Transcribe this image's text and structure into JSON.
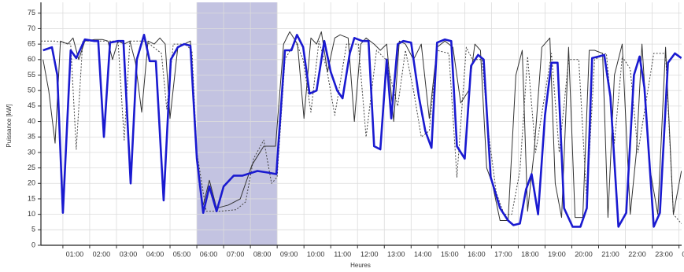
{
  "chart_data": {
    "type": "line",
    "xlabel": "Heures",
    "ylabel": "Puissance [kW]",
    "xlim": [
      0.18,
      24.1
    ],
    "ylim": [
      0,
      78.5
    ],
    "yticks": [
      0,
      5,
      10,
      15,
      20,
      25,
      30,
      35,
      40,
      45,
      50,
      55,
      60,
      65,
      70,
      75
    ],
    "xticks": [
      {
        "value": 1,
        "label": "01:00"
      },
      {
        "value": 2,
        "label": "02:00"
      },
      {
        "value": 3,
        "label": "03:00"
      },
      {
        "value": 4,
        "label": "04:00"
      },
      {
        "value": 5,
        "label": "05:00"
      },
      {
        "value": 6,
        "label": "06:00"
      },
      {
        "value": 7,
        "label": "07:00"
      },
      {
        "value": 8,
        "label": "08:00"
      },
      {
        "value": 9,
        "label": "09:00"
      },
      {
        "value": 10,
        "label": "10:00"
      },
      {
        "value": 11,
        "label": "11:00"
      },
      {
        "value": 12,
        "label": "12:00"
      },
      {
        "value": 13,
        "label": "13:00"
      },
      {
        "value": 14,
        "label": "14:00"
      },
      {
        "value": 15,
        "label": "15:00"
      },
      {
        "value": 16,
        "label": "16:00"
      },
      {
        "value": 17,
        "label": "17:00"
      },
      {
        "value": 18,
        "label": "18:00"
      },
      {
        "value": 19,
        "label": "19:00"
      },
      {
        "value": 20,
        "label": "20:00"
      },
      {
        "value": 21,
        "label": "21:00"
      },
      {
        "value": 22,
        "label": "22:00"
      },
      {
        "value": 23,
        "label": "23:00"
      },
      {
        "value": 24,
        "label": "00:00"
      }
    ],
    "grid": true,
    "highlight": {
      "range": [
        6,
        9
      ],
      "color": "#b8b8dc"
    },
    "series": [
      {
        "color": "#444444",
        "style": "dotted",
        "width": 1,
        "x": [
          0.18,
          0.71,
          1.29,
          1.5,
          1.74,
          2.18,
          3.06,
          3.29,
          3.5,
          4.09,
          4.68,
          4.88,
          5.12,
          5.56,
          5.82,
          6.0,
          6.35,
          6.88,
          7.47,
          7.82,
          8.12,
          8.5,
          8.79,
          9.0,
          9.29,
          9.68,
          9.97,
          10.26,
          10.56,
          10.85,
          11.15,
          11.59,
          12.03,
          12.32,
          12.71,
          13.06,
          13.5,
          13.79,
          14.09,
          14.38,
          14.68,
          14.97,
          15.41,
          15.71,
          16.06,
          16.29,
          16.65,
          16.88,
          17.18,
          17.47,
          17.76,
          18.06,
          18.35,
          18.65,
          19.24,
          19.53,
          19.88,
          20.26,
          20.56,
          20.85,
          21.29,
          21.59,
          21.88,
          22.18,
          22.47,
          23.06,
          23.5,
          23.79,
          24.09
        ],
        "values": [
          66,
          66,
          65,
          31,
          66,
          66,
          66,
          34,
          66,
          66,
          62,
          44,
          65,
          65,
          63,
          30,
          11,
          11,
          11.5,
          14,
          28,
          34,
          20,
          22,
          60,
          66,
          60,
          43,
          66,
          57,
          42,
          65,
          65,
          35,
          63,
          60,
          45,
          63,
          50,
          35,
          37,
          63,
          62,
          22,
          64,
          60,
          60,
          37,
          17,
          10,
          10,
          24,
          61,
          30,
          62,
          30,
          60,
          60,
          14,
          60,
          62,
          33,
          61,
          57,
          30,
          62,
          62,
          10,
          7
        ]
      },
      {
        "color": "#333333",
        "style": "solid",
        "width": 1,
        "x": [
          0.26,
          0.47,
          0.71,
          0.91,
          1.18,
          1.38,
          1.59,
          1.82,
          2.18,
          2.47,
          2.68,
          2.85,
          3.06,
          3.29,
          3.5,
          3.71,
          3.94,
          4.18,
          4.41,
          4.62,
          4.82,
          5.0,
          5.29,
          5.53,
          5.76,
          6.0,
          6.21,
          6.47,
          6.74,
          7.18,
          7.62,
          8.06,
          8.5,
          8.94,
          9.24,
          9.47,
          9.76,
          10.0,
          10.26,
          10.47,
          10.65,
          10.88,
          11.15,
          11.35,
          11.65,
          11.88,
          12.12,
          12.32,
          12.62,
          12.85,
          13.09,
          13.35,
          13.56,
          13.79,
          14.09,
          14.38,
          14.68,
          14.97,
          15.26,
          15.56,
          15.85,
          16.15,
          16.38,
          16.59,
          16.82,
          17.03,
          17.32,
          17.62,
          17.91,
          18.15,
          18.35,
          18.59,
          18.88,
          19.18,
          19.38,
          19.62,
          19.88,
          20.12,
          20.41,
          20.65,
          20.85,
          21.15,
          21.35,
          21.59,
          21.88,
          22.18,
          22.41,
          22.62,
          22.91,
          23.21,
          23.5,
          23.79,
          24.09
        ],
        "values": [
          60,
          50,
          33,
          66,
          65,
          67,
          60,
          66,
          66.5,
          66.5,
          66,
          60,
          66,
          65,
          66,
          59,
          43,
          66,
          65,
          67,
          65,
          41,
          64,
          65,
          66,
          30,
          12,
          21,
          12,
          13,
          15,
          26,
          32,
          32,
          65,
          69,
          65,
          41,
          67,
          65,
          69,
          56,
          67,
          68,
          67,
          40,
          65,
          67,
          65,
          63,
          65,
          40,
          66,
          65,
          60,
          65,
          41,
          64,
          66,
          64,
          46,
          50,
          65,
          63,
          25,
          20,
          8,
          8,
          55,
          63,
          11,
          30,
          64,
          67,
          20,
          9,
          64,
          9,
          9,
          63,
          63,
          62,
          9,
          55,
          65,
          10,
          30,
          65,
          25,
          10,
          64,
          10,
          24
        ]
      },
      {
        "color": "#1a1ad0",
        "style": "solid",
        "width": 2.6,
        "x": [
          0.26,
          0.59,
          0.79,
          1.0,
          1.29,
          1.5,
          1.82,
          2.18,
          2.32,
          2.53,
          2.76,
          3.06,
          3.26,
          3.53,
          3.76,
          4.03,
          4.24,
          4.47,
          4.76,
          5.03,
          5.29,
          5.53,
          5.76,
          6.0,
          6.24,
          6.47,
          6.74,
          7.0,
          7.38,
          7.71,
          8.26,
          8.65,
          8.97,
          9.29,
          9.53,
          9.74,
          9.97,
          10.21,
          10.47,
          10.76,
          11.0,
          11.24,
          11.44,
          11.71,
          11.88,
          12.18,
          12.41,
          12.62,
          12.85,
          13.09,
          13.26,
          13.5,
          13.71,
          14.0,
          14.29,
          14.53,
          14.76,
          14.97,
          15.26,
          15.5,
          15.71,
          16.0,
          16.24,
          16.5,
          16.71,
          16.97,
          17.32,
          17.62,
          17.82,
          18.06,
          18.29,
          18.5,
          18.74,
          19.0,
          19.24,
          19.47,
          19.71,
          20.03,
          20.32,
          20.56,
          20.76,
          21.0,
          21.21,
          21.44,
          21.74,
          22.03,
          22.32,
          22.53,
          22.71,
          23.06,
          23.29,
          23.59,
          23.85,
          24.09
        ],
        "values": [
          63,
          64,
          55,
          10.5,
          63,
          60.5,
          66.5,
          66,
          66,
          35,
          65.5,
          66,
          66,
          20,
          60,
          68,
          59.5,
          59.5,
          14.5,
          60,
          64,
          65,
          64.5,
          28,
          10.5,
          19,
          11,
          19,
          22.5,
          22.5,
          24,
          23.5,
          23,
          63,
          63,
          68,
          64,
          49,
          50,
          66,
          56,
          50,
          47.5,
          62,
          67,
          66,
          66,
          32,
          31,
          60,
          41,
          65,
          66,
          65.5,
          48,
          37,
          31.5,
          65.5,
          66.5,
          66,
          32,
          28,
          58,
          61.5,
          60,
          22,
          12,
          8,
          6.5,
          7,
          18,
          23,
          10,
          42,
          59,
          59,
          12,
          6,
          6,
          12,
          60.5,
          61,
          61.5,
          48,
          6,
          10.5,
          55,
          61,
          51,
          6,
          10.5,
          59,
          62,
          60.5
        ]
      }
    ]
  }
}
